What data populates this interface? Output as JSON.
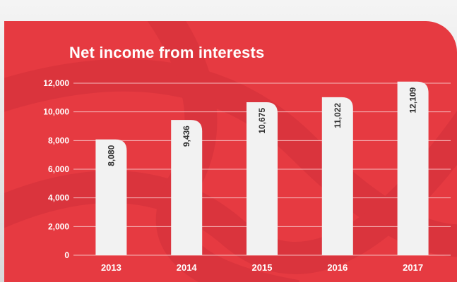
{
  "chart_data": {
    "type": "bar",
    "title": "Net income from interests",
    "xlabel": "",
    "ylabel": "",
    "categories": [
      "2013",
      "2014",
      "2015",
      "2016",
      "2017"
    ],
    "values": [
      8080,
      9436,
      10675,
      11022,
      12109
    ],
    "value_labels": [
      "8,080",
      "9,436",
      "10,675",
      "11,022",
      "12,109"
    ],
    "ylim": [
      0,
      12000
    ],
    "yticks": [
      0,
      2000,
      4000,
      6000,
      8000,
      10000,
      12000
    ],
    "ytick_labels": [
      "0",
      "2,000",
      "4,000",
      "6,000",
      "8,000",
      "10,000",
      "12,000"
    ],
    "grid": true,
    "colors": {
      "background": "#e63a41",
      "bar": "#f2f2f2",
      "gridline": "#f6b9bb",
      "text": "#ffffff",
      "label": "#333333"
    }
  }
}
